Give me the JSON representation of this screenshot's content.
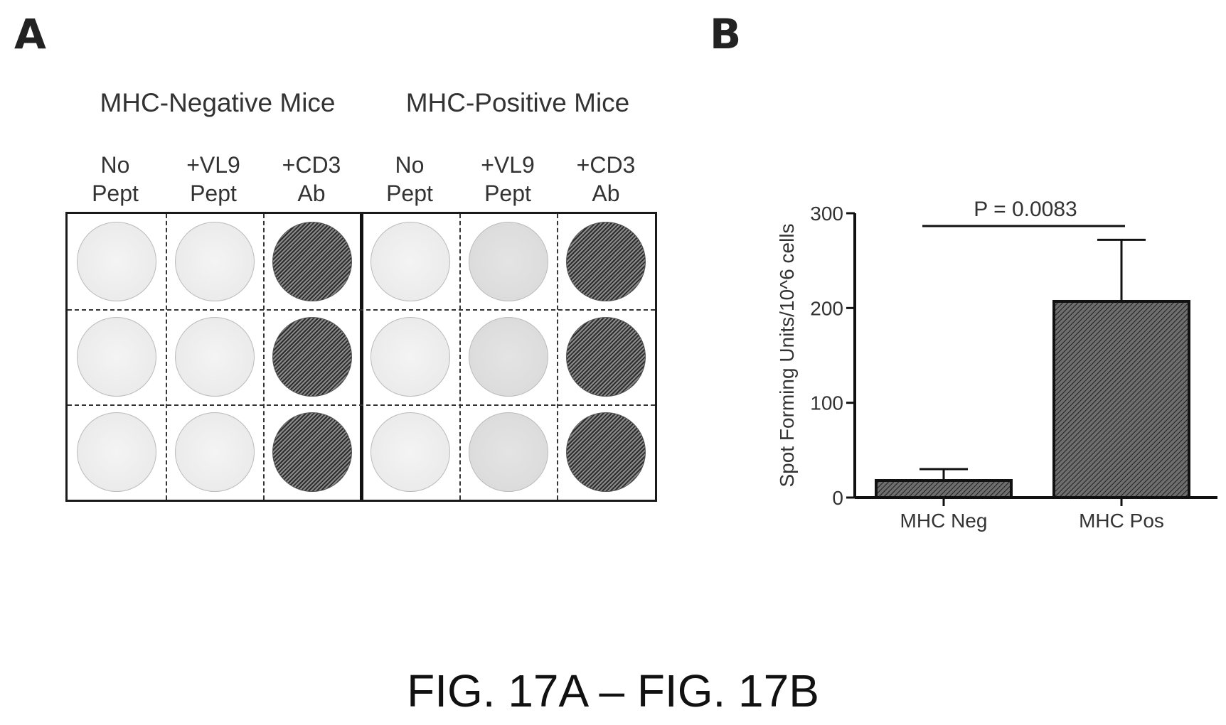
{
  "panel_labels": {
    "a": "A",
    "b": "B"
  },
  "figure_title": "FIG. 17A – FIG. 17B",
  "panel_a": {
    "groups": [
      {
        "title": "MHC-Negative Mice"
      },
      {
        "title": "MHC-Positive Mice"
      }
    ],
    "columns": [
      {
        "line1": "No",
        "line2": "Pept",
        "intensity": "light"
      },
      {
        "line1": "+VL9",
        "line2": "Pept",
        "intensity": "light"
      },
      {
        "line1": "+CD3",
        "line2": "Ab",
        "intensity": "dark"
      },
      {
        "line1": "No",
        "line2": "Pept",
        "intensity": "light"
      },
      {
        "line1": "+VL9",
        "line2": "Pept",
        "intensity": "lightmid"
      },
      {
        "line1": "+CD3",
        "line2": "Ab",
        "intensity": "dark"
      }
    ],
    "rows": 3
  },
  "chart_data": {
    "type": "bar",
    "categories": [
      "MHC Neg",
      "MHC Pos"
    ],
    "values": [
      18,
      207
    ],
    "error_upper": [
      30,
      272
    ],
    "ylabel": "Spot Forming Units/10^6 cells",
    "ylim": [
      0,
      300
    ],
    "yticks": [
      0,
      100,
      200,
      300
    ],
    "annotation": "P = 0.0083",
    "grid": false,
    "bar_fill": "#6e6e6e"
  }
}
